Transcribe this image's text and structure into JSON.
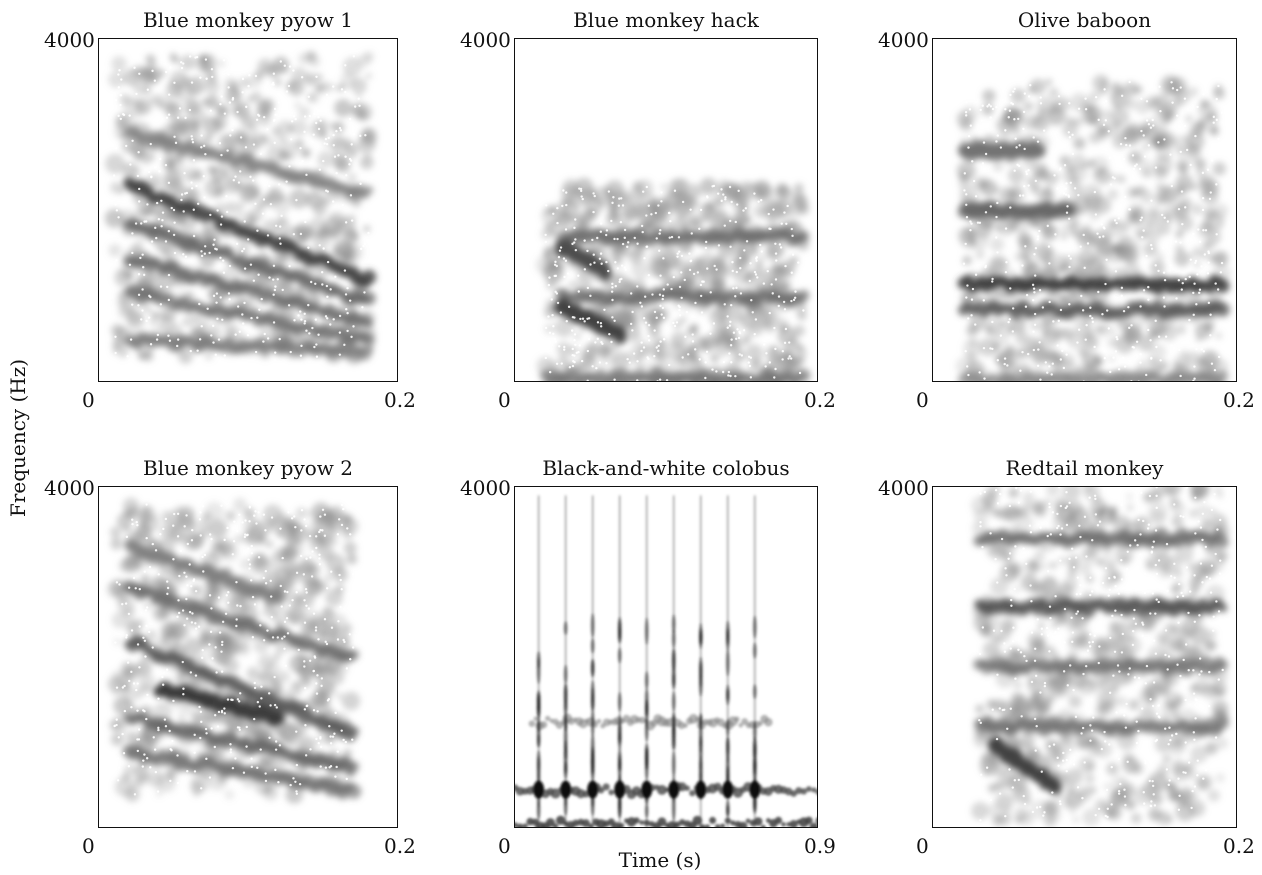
{
  "figure": {
    "ylabel": "Frequency (Hz)",
    "xlabel": "Time (s)"
  },
  "chart_data": [
    {
      "type": "heatmap",
      "title": "Blue monkey pyow 1",
      "xlim": [
        0,
        0.2
      ],
      "ylim": [
        0,
        4000
      ],
      "x_tick_labels": [
        "0",
        "0.2"
      ],
      "y_tick_labels": [
        "4000"
      ],
      "signal_time_range": [
        0.01,
        0.18
      ],
      "signal_freq_range": [
        300,
        3800
      ],
      "bands": [
        {
          "t_start": 0.02,
          "t_end": 0.18,
          "f_start": 2300,
          "f_end": 1200,
          "strength": 0.9
        },
        {
          "t_start": 0.02,
          "t_end": 0.18,
          "f_start": 1850,
          "f_end": 950,
          "strength": 0.6
        },
        {
          "t_start": 0.02,
          "t_end": 0.18,
          "f_start": 1450,
          "f_end": 700,
          "strength": 0.55
        },
        {
          "t_start": 0.02,
          "t_end": 0.18,
          "f_start": 1050,
          "f_end": 500,
          "strength": 0.5
        },
        {
          "t_start": 0.02,
          "t_end": 0.18,
          "f_start": 500,
          "f_end": 350,
          "strength": 0.45
        },
        {
          "t_start": 0.02,
          "t_end": 0.18,
          "f_start": 2900,
          "f_end": 2200,
          "strength": 0.4
        }
      ]
    },
    {
      "type": "heatmap",
      "title": "Blue monkey hack",
      "xlim": [
        0,
        0.2
      ],
      "ylim": [
        0,
        4000
      ],
      "x_tick_labels": [
        "0",
        "0.2"
      ],
      "y_tick_labels": [
        "4000"
      ],
      "signal_time_range": [
        0.02,
        0.19
      ],
      "signal_freq_range": [
        0,
        2300
      ],
      "bands": [
        {
          "t_start": 0.03,
          "t_end": 0.19,
          "f_start": 1700,
          "f_end": 1700,
          "strength": 0.55
        },
        {
          "t_start": 0.03,
          "t_end": 0.19,
          "f_start": 1000,
          "f_end": 1000,
          "strength": 0.55
        },
        {
          "t_start": 0.03,
          "t_end": 0.07,
          "f_start": 900,
          "f_end": 550,
          "strength": 0.95
        },
        {
          "t_start": 0.03,
          "t_end": 0.06,
          "f_start": 1600,
          "f_end": 1300,
          "strength": 0.85
        },
        {
          "t_start": 0.02,
          "t_end": 0.19,
          "f_start": 50,
          "f_end": 50,
          "strength": 0.5
        }
      ]
    },
    {
      "type": "heatmap",
      "title": "Olive baboon",
      "xlim": [
        0,
        0.2
      ],
      "ylim": [
        0,
        4000
      ],
      "x_tick_labels": [
        "0",
        "0.2"
      ],
      "y_tick_labels": [
        "4000"
      ],
      "signal_time_range": [
        0.02,
        0.19
      ],
      "signal_freq_range": [
        0,
        3500
      ],
      "bands": [
        {
          "t_start": 0.02,
          "t_end": 0.19,
          "f_start": 1150,
          "f_end": 1150,
          "strength": 0.95
        },
        {
          "t_start": 0.02,
          "t_end": 0.19,
          "f_start": 850,
          "f_end": 850,
          "strength": 0.7
        },
        {
          "t_start": 0.02,
          "t_end": 0.09,
          "f_start": 2000,
          "f_end": 2000,
          "strength": 0.6
        },
        {
          "t_start": 0.02,
          "t_end": 0.07,
          "f_start": 2700,
          "f_end": 2700,
          "strength": 0.5
        },
        {
          "t_start": 0.02,
          "t_end": 0.19,
          "f_start": 40,
          "f_end": 40,
          "strength": 0.35
        }
      ]
    },
    {
      "type": "heatmap",
      "title": "Blue monkey pyow 2",
      "xlim": [
        0,
        0.2
      ],
      "ylim": [
        0,
        4000
      ],
      "x_tick_labels": [
        "0",
        "0.2"
      ],
      "y_tick_labels": [
        "4000"
      ],
      "signal_time_range": [
        0.01,
        0.17
      ],
      "signal_freq_range": [
        400,
        3800
      ],
      "bands": [
        {
          "t_start": 0.02,
          "t_end": 0.17,
          "f_start": 2200,
          "f_end": 1100,
          "strength": 0.7
        },
        {
          "t_start": 0.04,
          "t_end": 0.12,
          "f_start": 1650,
          "f_end": 1300,
          "strength": 1.0
        },
        {
          "t_start": 0.02,
          "t_end": 0.17,
          "f_start": 1300,
          "f_end": 700,
          "strength": 0.6
        },
        {
          "t_start": 0.02,
          "t_end": 0.17,
          "f_start": 900,
          "f_end": 450,
          "strength": 0.5
        },
        {
          "t_start": 0.02,
          "t_end": 0.17,
          "f_start": 2800,
          "f_end": 2000,
          "strength": 0.55
        },
        {
          "t_start": 0.02,
          "t_end": 0.12,
          "f_start": 3300,
          "f_end": 2700,
          "strength": 0.4
        }
      ]
    },
    {
      "type": "heatmap",
      "title": "Black-and-white colobus",
      "xlim": [
        0,
        0.9
      ],
      "ylim": [
        0,
        4000
      ],
      "x_tick_labels": [
        "0",
        "0.9"
      ],
      "y_tick_labels": [
        "4000"
      ],
      "signal_time_range": [
        0.02,
        0.88
      ],
      "signal_freq_range": [
        0,
        4000
      ],
      "pulse_times": [
        0.07,
        0.15,
        0.23,
        0.31,
        0.39,
        0.47,
        0.55,
        0.63,
        0.71
      ],
      "bands": [
        {
          "t_start": 0.0,
          "t_end": 0.9,
          "f_start": 450,
          "f_end": 450,
          "strength": 0.85
        },
        {
          "t_start": 0.0,
          "t_end": 0.9,
          "f_start": 60,
          "f_end": 60,
          "strength": 0.95
        },
        {
          "t_start": 0.05,
          "t_end": 0.75,
          "f_start": 1250,
          "f_end": 1250,
          "strength": 0.35
        }
      ]
    },
    {
      "type": "heatmap",
      "title": "Redtail monkey",
      "xlim": [
        0,
        0.2
      ],
      "ylim": [
        0,
        4000
      ],
      "x_tick_labels": [
        "0",
        "0.2"
      ],
      "y_tick_labels": [
        "4000"
      ],
      "signal_time_range": [
        0.03,
        0.19
      ],
      "signal_freq_range": [
        100,
        4000
      ],
      "bands": [
        {
          "t_start": 0.03,
          "t_end": 0.19,
          "f_start": 2600,
          "f_end": 2600,
          "strength": 0.75
        },
        {
          "t_start": 0.03,
          "t_end": 0.19,
          "f_start": 3400,
          "f_end": 3400,
          "strength": 0.55
        },
        {
          "t_start": 0.03,
          "t_end": 0.19,
          "f_start": 1900,
          "f_end": 1900,
          "strength": 0.5
        },
        {
          "t_start": 0.04,
          "t_end": 0.08,
          "f_start": 1000,
          "f_end": 500,
          "strength": 0.95
        },
        {
          "t_start": 0.03,
          "t_end": 0.19,
          "f_start": 1200,
          "f_end": 1200,
          "strength": 0.5
        }
      ]
    }
  ]
}
